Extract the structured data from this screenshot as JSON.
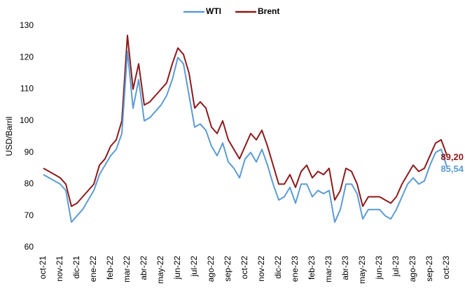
{
  "chart_data": {
    "type": "line",
    "y_label": "USD/Barril",
    "categories": [
      "oct-21",
      null,
      null,
      "nov-21",
      null,
      null,
      "dic-21",
      null,
      null,
      "ene-22",
      null,
      null,
      "feb-22",
      null,
      null,
      "mar-22",
      null,
      null,
      "abr-22",
      null,
      null,
      "may-22",
      null,
      null,
      "jun-22",
      null,
      null,
      "jul-22",
      null,
      null,
      "ago-22",
      null,
      null,
      "sep-22",
      null,
      null,
      "oct-22",
      null,
      null,
      "nov-22",
      null,
      null,
      "dic-22",
      null,
      null,
      "ene-23",
      null,
      null,
      "feb-23",
      null,
      null,
      "mar-23",
      null,
      null,
      "abr-23",
      null,
      null,
      "may-23",
      null,
      null,
      "jun-23",
      null,
      null,
      "jul-23",
      null,
      null,
      "ago-23",
      null,
      null,
      "sep-23",
      null,
      null,
      "oct-23"
    ],
    "series": [
      {
        "name": "WTI",
        "color": "#5b9bd5",
        "values": [
          83,
          82,
          81,
          80,
          78,
          68,
          70,
          72,
          75,
          78,
          83,
          86,
          89,
          91,
          96,
          122,
          104,
          113,
          100,
          101,
          103,
          105,
          108,
          113,
          120,
          118,
          108,
          98,
          99,
          97,
          92,
          89,
          93,
          87,
          85,
          82,
          88,
          90,
          87,
          91,
          86,
          80,
          75,
          76,
          79,
          74,
          80,
          80,
          76,
          78,
          77,
          78,
          68,
          72,
          80,
          80,
          77,
          69,
          72,
          72,
          72,
          70,
          69,
          72,
          76,
          80,
          82,
          80,
          81,
          86,
          90,
          91,
          85.54
        ],
        "value_labels": [
          null,
          null,
          null,
          null,
          null,
          null,
          null,
          null,
          null,
          null,
          null,
          null,
          null,
          null,
          null,
          null,
          null,
          null,
          null,
          null,
          null,
          null,
          null,
          null,
          null,
          null,
          null,
          null,
          null,
          null,
          null,
          null,
          null,
          null,
          null,
          null,
          null,
          null,
          null,
          null,
          null,
          null,
          null,
          null,
          null,
          null,
          null,
          null,
          null,
          null,
          null,
          null,
          null,
          null,
          null,
          null,
          null,
          null,
          null,
          null,
          null,
          null,
          null,
          null,
          null,
          null,
          null,
          null,
          null,
          null,
          null,
          null,
          "85,54"
        ]
      },
      {
        "name": "Brent",
        "color": "#8b1a1a",
        "values": [
          85,
          84,
          83,
          82,
          80,
          73,
          74,
          76,
          78,
          80,
          86,
          88,
          92,
          94,
          100,
          127,
          110,
          118,
          105,
          106,
          108,
          110,
          112,
          118,
          123,
          121,
          115,
          104,
          106,
          104,
          98,
          96,
          100,
          94,
          91,
          88,
          92,
          96,
          94,
          97,
          92,
          86,
          80,
          80,
          83,
          79,
          84,
          86,
          82,
          84,
          83,
          85,
          75,
          78,
          85,
          84,
          80,
          73,
          76,
          76,
          76,
          75,
          74,
          76,
          80,
          83,
          86,
          84,
          85,
          89,
          93,
          94,
          89.2
        ],
        "value_labels": [
          null,
          null,
          null,
          null,
          null,
          null,
          null,
          null,
          null,
          null,
          null,
          null,
          null,
          null,
          null,
          null,
          null,
          null,
          null,
          null,
          null,
          null,
          null,
          null,
          null,
          null,
          null,
          null,
          null,
          null,
          null,
          null,
          null,
          null,
          null,
          null,
          null,
          null,
          null,
          null,
          null,
          null,
          null,
          null,
          null,
          null,
          null,
          null,
          null,
          null,
          null,
          null,
          null,
          null,
          null,
          null,
          null,
          null,
          null,
          null,
          null,
          null,
          null,
          null,
          null,
          null,
          null,
          null,
          null,
          null,
          null,
          null,
          "89,20"
        ]
      }
    ],
    "ylim": [
      60,
      130
    ],
    "yticks": [
      60,
      70,
      80,
      90,
      100,
      110,
      120,
      130
    ],
    "grid": false,
    "legend": "top"
  }
}
